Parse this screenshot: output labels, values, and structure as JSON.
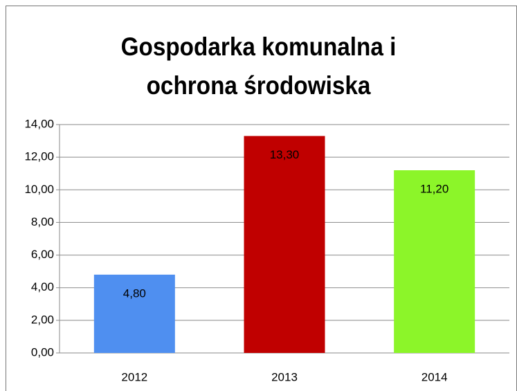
{
  "chart_data": {
    "type": "bar",
    "title": "Gospodarka komunalna i ochrona środowiska",
    "categories": [
      "2012",
      "2013",
      "2014"
    ],
    "values": [
      4.8,
      13.3,
      11.2
    ],
    "value_labels": [
      "4,80",
      "13,30",
      "11,20"
    ],
    "colors": [
      "#4f8ff0",
      "#c00000",
      "#8cf529"
    ],
    "ylim": [
      0,
      14
    ],
    "yticks": [
      {
        "value": 0,
        "label": "0,00"
      },
      {
        "value": 2,
        "label": "2,00"
      },
      {
        "value": 4,
        "label": "4,00"
      },
      {
        "value": 6,
        "label": "6,00"
      },
      {
        "value": 8,
        "label": "8,00"
      },
      {
        "value": 10,
        "label": "10,00"
      },
      {
        "value": 12,
        "label": "12,00"
      },
      {
        "value": 14,
        "label": "14,00"
      }
    ],
    "grid": true
  }
}
